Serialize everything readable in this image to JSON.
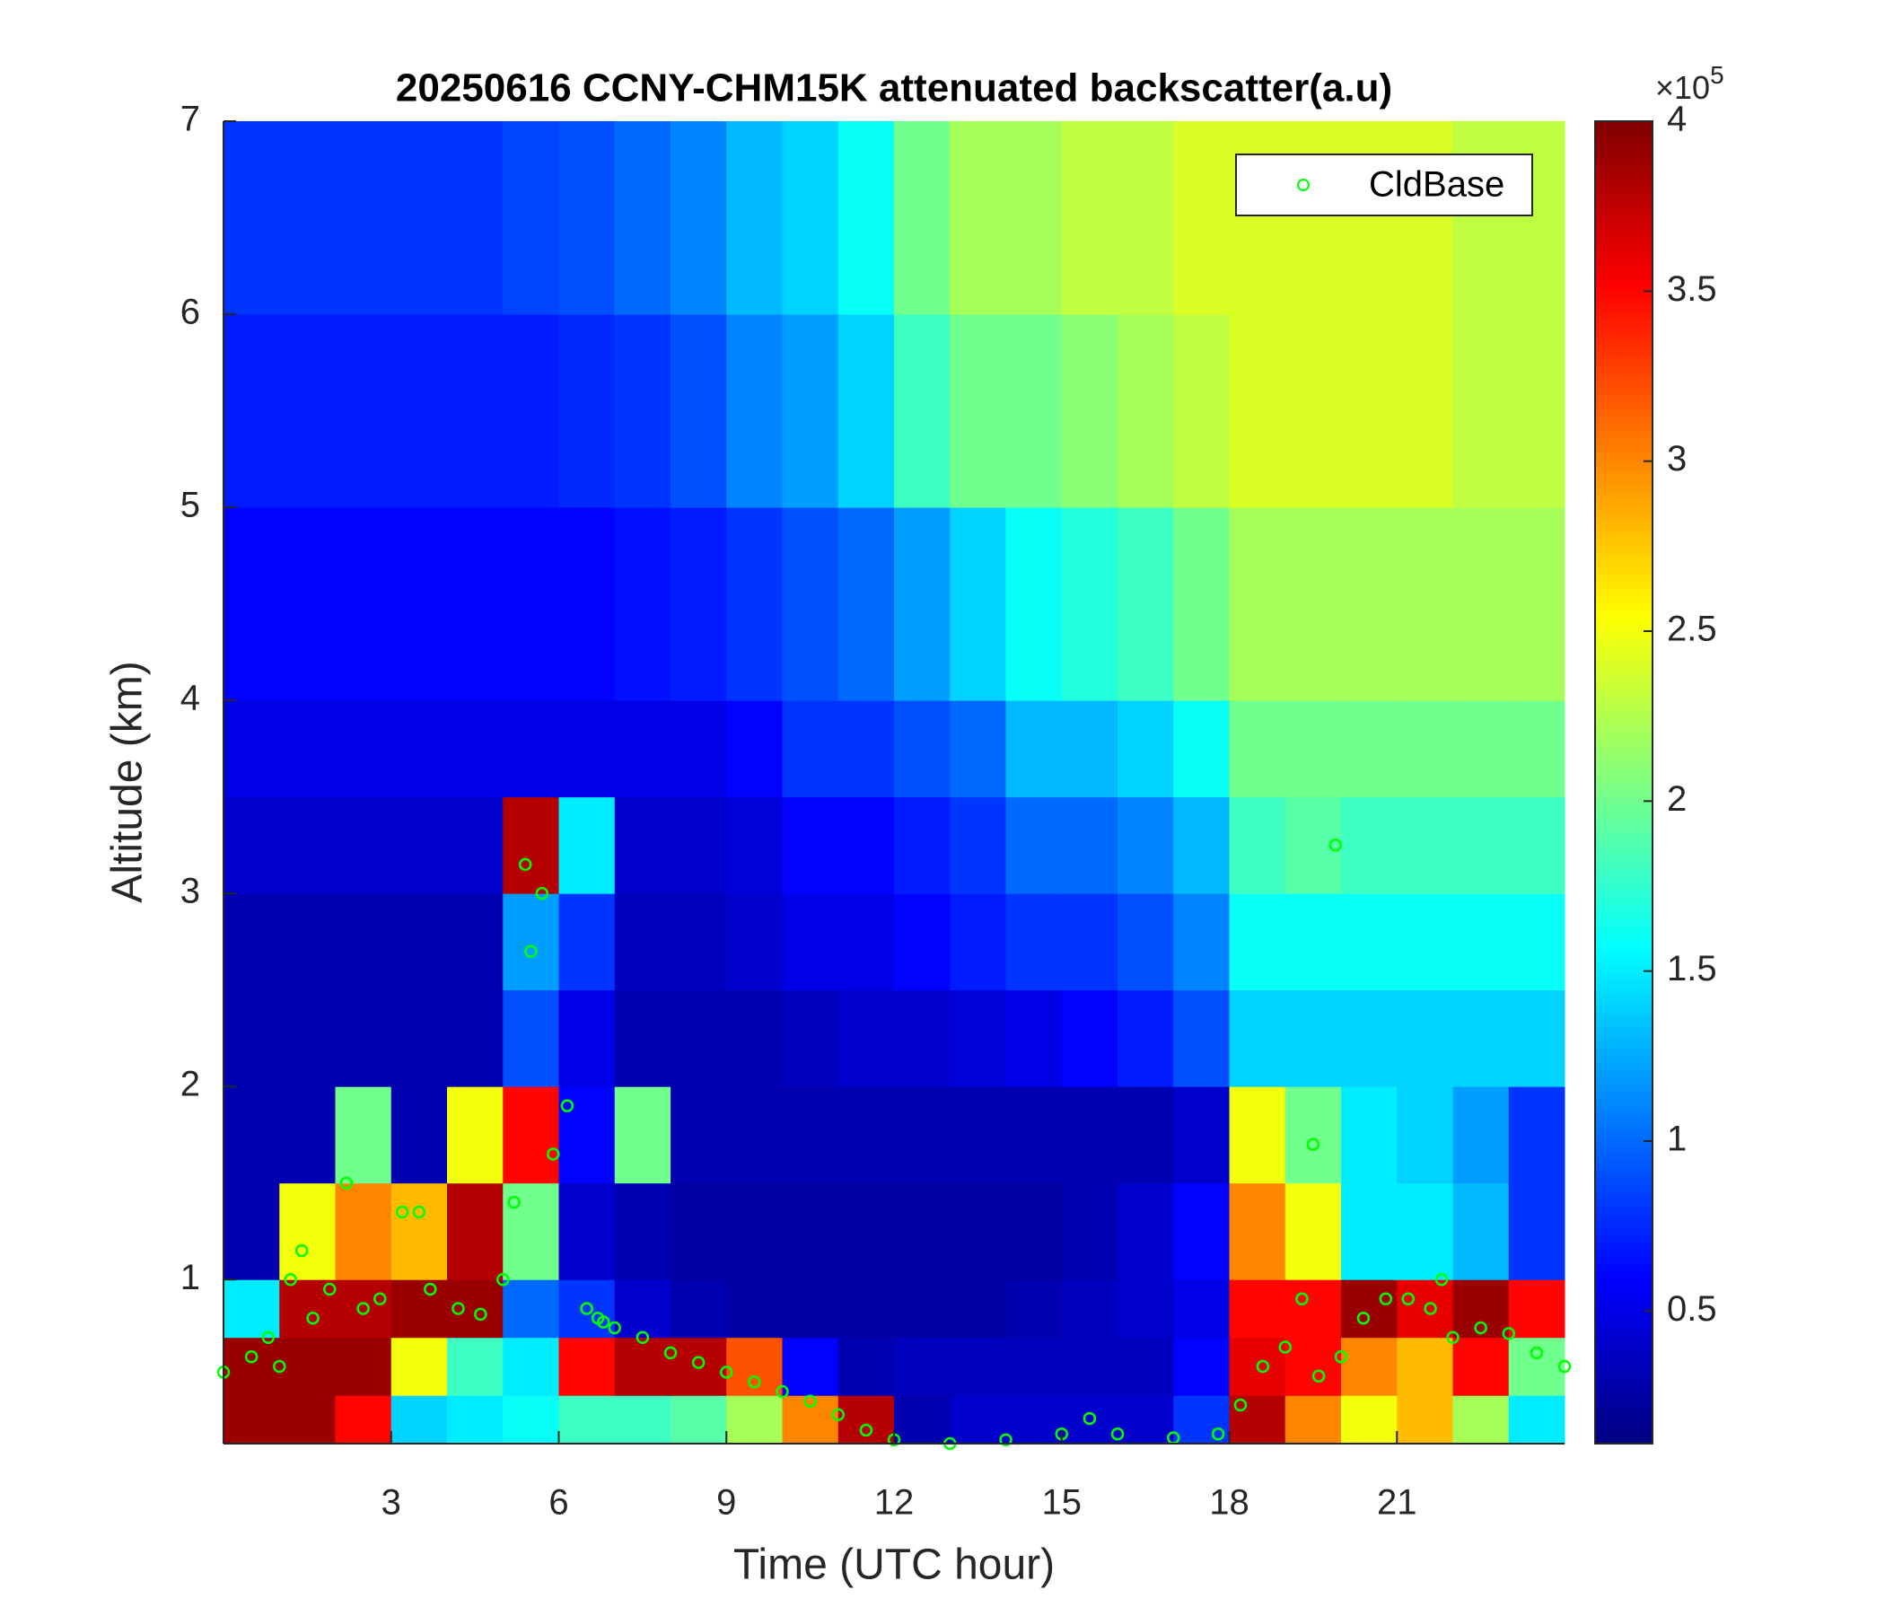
{
  "chart_data": {
    "type": "heatmap",
    "title": "20250616 CCNY-CHM15K attenuated backscatter(a.u)",
    "x_label": "Time (UTC hour)",
    "y_label": "Altitude (km)",
    "colormap": "jet",
    "x_edges": [
      0,
      1,
      2,
      3,
      4,
      5,
      6,
      7,
      8,
      9,
      10,
      11,
      12,
      13,
      14,
      15,
      16,
      17,
      18,
      19,
      20,
      21,
      22,
      23,
      24
    ],
    "y_edges": [
      0.15,
      0.4,
      0.7,
      1,
      1.5,
      2,
      2.5,
      3,
      3.5,
      4,
      5,
      6,
      7
    ],
    "values": [
      [
        3.9,
        3.9,
        3.5,
        1.4,
        1.5,
        1.6,
        1.8,
        1.8,
        1.9,
        2.2,
        3.0,
        3.8,
        0.3,
        0.4,
        0.4,
        0.4,
        0.4,
        0.8,
        3.8,
        3.0,
        2.5,
        2.8,
        2.2,
        1.5
      ],
      [
        3.9,
        3.9,
        3.9,
        2.5,
        1.8,
        1.5,
        3.5,
        3.8,
        3.8,
        3.2,
        0.6,
        0.3,
        0.35,
        0.35,
        0.35,
        0.35,
        0.35,
        0.6,
        3.6,
        3.5,
        3.0,
        2.8,
        3.5,
        2.0
      ],
      [
        1.5,
        3.8,
        3.8,
        3.9,
        3.9,
        1.0,
        0.8,
        0.4,
        0.3,
        0.25,
        0.25,
        0.25,
        0.25,
        0.25,
        0.3,
        0.35,
        0.4,
        0.5,
        3.5,
        3.5,
        3.9,
        3.6,
        3.9,
        3.5
      ],
      [
        0.3,
        2.5,
        3.0,
        2.8,
        3.8,
        2.0,
        0.4,
        0.3,
        0.25,
        0.25,
        0.25,
        0.25,
        0.25,
        0.25,
        0.25,
        0.3,
        0.4,
        0.6,
        3.0,
        2.5,
        1.5,
        1.5,
        1.3,
        0.8
      ],
      [
        0.3,
        0.3,
        2.0,
        0.3,
        2.5,
        3.5,
        0.6,
        2.0,
        0.3,
        0.3,
        0.3,
        0.3,
        0.3,
        0.3,
        0.3,
        0.3,
        0.3,
        0.4,
        2.5,
        2.0,
        1.5,
        1.4,
        1.2,
        0.8
      ],
      [
        0.3,
        0.3,
        0.3,
        0.3,
        0.3,
        0.9,
        0.5,
        0.3,
        0.3,
        0.3,
        0.35,
        0.4,
        0.4,
        0.45,
        0.5,
        0.6,
        0.7,
        0.9,
        1.4,
        1.4,
        1.4,
        1.4,
        1.4,
        1.4
      ],
      [
        0.3,
        0.3,
        0.3,
        0.3,
        0.3,
        1.2,
        0.8,
        0.35,
        0.35,
        0.4,
        0.5,
        0.5,
        0.6,
        0.7,
        0.8,
        0.8,
        0.9,
        1.1,
        1.6,
        1.6,
        1.6,
        1.6,
        1.6,
        1.6
      ],
      [
        0.4,
        0.4,
        0.4,
        0.4,
        0.4,
        3.8,
        1.5,
        0.4,
        0.4,
        0.45,
        0.6,
        0.6,
        0.7,
        0.8,
        1.0,
        1.0,
        1.1,
        1.3,
        1.8,
        1.9,
        1.8,
        1.8,
        1.8,
        1.8
      ],
      [
        0.5,
        0.5,
        0.5,
        0.5,
        0.5,
        0.5,
        0.5,
        0.5,
        0.5,
        0.6,
        0.8,
        0.8,
        0.9,
        1.0,
        1.3,
        1.3,
        1.4,
        1.6,
        2.0,
        2.0,
        2.0,
        2.0,
        2.0,
        2.0
      ],
      [
        0.6,
        0.6,
        0.6,
        0.6,
        0.6,
        0.6,
        0.6,
        0.65,
        0.7,
        0.8,
        0.9,
        1.0,
        1.2,
        1.4,
        1.6,
        1.7,
        1.8,
        2.0,
        2.2,
        2.2,
        2.2,
        2.2,
        2.2,
        2.2
      ],
      [
        0.7,
        0.7,
        0.7,
        0.7,
        0.7,
        0.7,
        0.75,
        0.8,
        0.9,
        1.1,
        1.2,
        1.4,
        1.8,
        2.0,
        2.0,
        2.1,
        2.2,
        2.3,
        2.4,
        2.4,
        2.4,
        2.4,
        2.3,
        2.3
      ],
      [
        0.8,
        0.8,
        0.8,
        0.8,
        0.8,
        0.85,
        0.9,
        1.0,
        1.1,
        1.3,
        1.4,
        1.6,
        2.0,
        2.2,
        2.2,
        2.3,
        2.3,
        2.4,
        2.4,
        2.4,
        2.4,
        2.4,
        2.3,
        2.3
      ]
    ],
    "xlim": [
      0,
      24
    ],
    "ylim": [
      0.15,
      7
    ],
    "xticks": [
      3,
      6,
      9,
      12,
      15,
      18,
      21
    ],
    "yticks": [
      1,
      2,
      3,
      4,
      5,
      6,
      7
    ],
    "clim": [
      0.11,
      4
    ],
    "cticks": [
      0.5,
      1,
      1.5,
      2,
      2.5,
      3,
      3.5,
      4
    ],
    "colorbar_multiplier": "×10",
    "colorbar_exponent": "5",
    "legend_position": "upper right",
    "scatter": {
      "name": "CldBase",
      "color": "#00ff00",
      "x": [
        0,
        0.5,
        0.8,
        1,
        1.2,
        1.4,
        1.6,
        1.9,
        2.2,
        2.5,
        2.8,
        3.2,
        3.5,
        3.7,
        4.2,
        4.6,
        5,
        5.2,
        5.4,
        5.5,
        5.7,
        5.9,
        6.15,
        6.5,
        6.7,
        6.8,
        7,
        7.5,
        8,
        8.5,
        9,
        9.5,
        10,
        10.5,
        11,
        11.5,
        12,
        13,
        14,
        15,
        15.5,
        16,
        17,
        17.8,
        18.2,
        18.6,
        19,
        19.3,
        19.5,
        19.6,
        19.9,
        20,
        20.4,
        20.8,
        21.2,
        21.6,
        21.8,
        22,
        22.5,
        23,
        23.5,
        24
      ],
      "y": [
        0.52,
        0.6,
        0.7,
        0.55,
        1.0,
        1.15,
        0.8,
        0.95,
        1.5,
        0.85,
        0.9,
        1.35,
        1.35,
        0.95,
        0.85,
        0.82,
        1.0,
        1.4,
        3.15,
        2.7,
        3.0,
        1.65,
        1.9,
        0.85,
        0.8,
        0.78,
        0.75,
        0.7,
        0.62,
        0.57,
        0.52,
        0.47,
        0.42,
        0.37,
        0.3,
        0.22,
        0.17,
        0.15,
        0.17,
        0.2,
        0.28,
        0.2,
        0.18,
        0.2,
        0.35,
        0.55,
        0.65,
        0.9,
        1.7,
        0.5,
        3.25,
        0.6,
        0.8,
        0.9,
        0.9,
        0.85,
        1.0,
        0.7,
        0.75,
        0.72,
        0.62,
        0.55
      ]
    }
  }
}
